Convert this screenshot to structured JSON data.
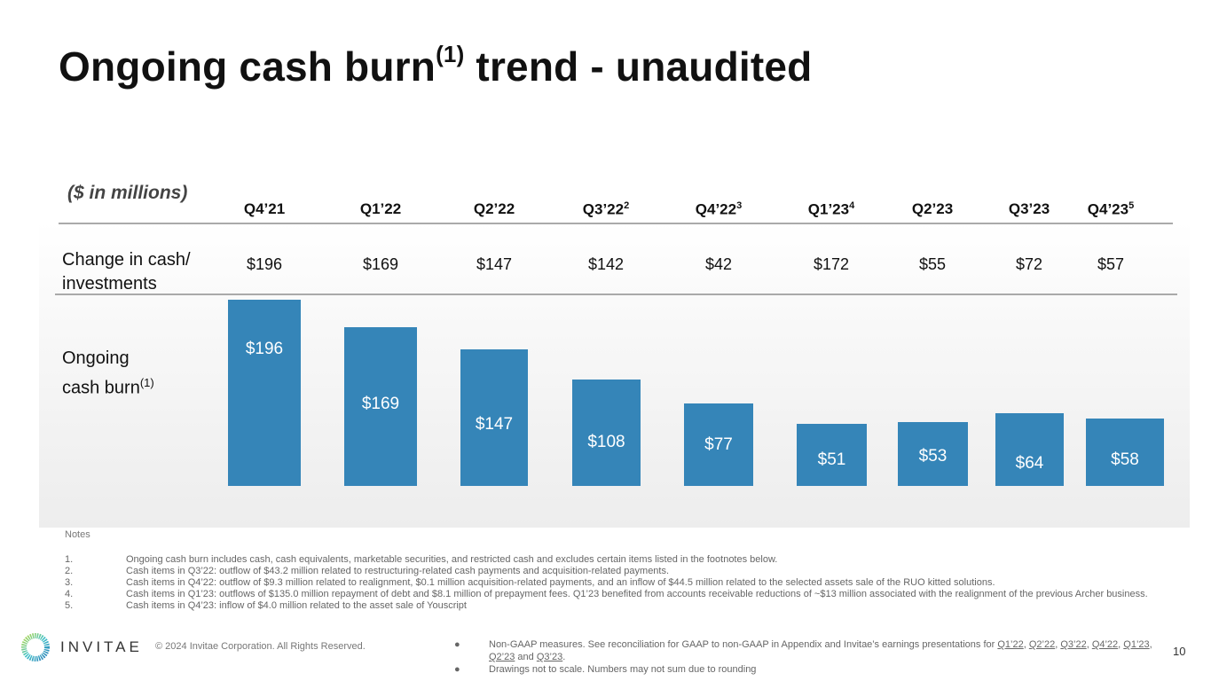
{
  "title": {
    "main": "Ongoing cash burn",
    "sup": "(1)",
    "rest": " trend - unaudited"
  },
  "units_label": "($ in millions)",
  "colors": {
    "bar": "#3585b8"
  },
  "chart_data": {
    "type": "bar",
    "title": "Ongoing cash burn trend - unaudited",
    "categories": [
      "Q4’21",
      "Q1’22",
      "Q2’22",
      "Q3’22",
      "Q4’22",
      "Q1’23",
      "Q2’23",
      "Q3’23",
      "Q4’23"
    ],
    "category_footnotes": [
      "",
      "",
      "",
      "2",
      "3",
      "4",
      "",
      "",
      "5"
    ],
    "rows": {
      "change_label": "Change in cash/ investments",
      "change_values": [
        "$196",
        "$169",
        "$147",
        "$142",
        "$42",
        "$172",
        "$55",
        "$72",
        "$57"
      ],
      "burn_label": "Ongoing cash burn",
      "burn_sup": "(1)"
    },
    "series": [
      {
        "name": "Ongoing cash burn",
        "values": [
          196,
          169,
          147,
          108,
          77,
          51,
          53,
          64,
          58
        ]
      }
    ],
    "data_labels": [
      "$196",
      "$169",
      "$147",
      "$108",
      "$77",
      "$51",
      "$53",
      "$64",
      "$58"
    ],
    "ylabel": "$ in millions",
    "note": "Drawings not to scale"
  },
  "row_labels": {
    "change_line1": "Change in cash/",
    "change_line2": "investments",
    "burn_line1": "Ongoing",
    "burn_line2": "cash burn",
    "burn_sup": "(1)"
  },
  "notes": {
    "heading": "Notes",
    "items": [
      {
        "n": "1.",
        "text": "Ongoing cash burn includes cash, cash equivalents, marketable securities, and restricted cash and excludes certain items listed in the footnotes below."
      },
      {
        "n": "2.",
        "text": "Cash items in Q3’22: outflow of $43.2 million related to restructuring-related cash payments and acquisition-related payments."
      },
      {
        "n": "3.",
        "text": "Cash items in Q4’22: outflow of $9.3 million related to realignment, $0.1 million acquisition-related payments, and an inflow of $44.5 million related to the selected assets sale of the RUO kitted solutions."
      },
      {
        "n": "4.",
        "text": "Cash items in Q1’23: outflows of $135.0 million repayment of debt and $8.1 million of prepayment fees. Q1’23 benefited from accounts receivable reductions of ~$13 million associated with the realignment of the previous Archer business."
      },
      {
        "n": "5.",
        "text": "Cash items in Q4’23: inflow of $4.0 million related to the asset sale of Youscript"
      }
    ]
  },
  "footer": {
    "logo": "INVITAE",
    "copyright": "© 2024 Invitae Corporation. All Rights Reserved.",
    "bullet1_text": "Non-GAAP measures. See reconciliation for GAAP to non-GAAP in Appendix and Invitae’s earnings presentations for ",
    "bullet1_links": [
      "Q1’22",
      "Q2’22",
      "Q3’22",
      "Q4’22",
      "Q1’23",
      "Q2’23",
      "Q3’23"
    ],
    "bullet1_and": "and",
    "bullet2": "Drawings not to scale. Numbers may not sum due to rounding",
    "page": "10"
  }
}
